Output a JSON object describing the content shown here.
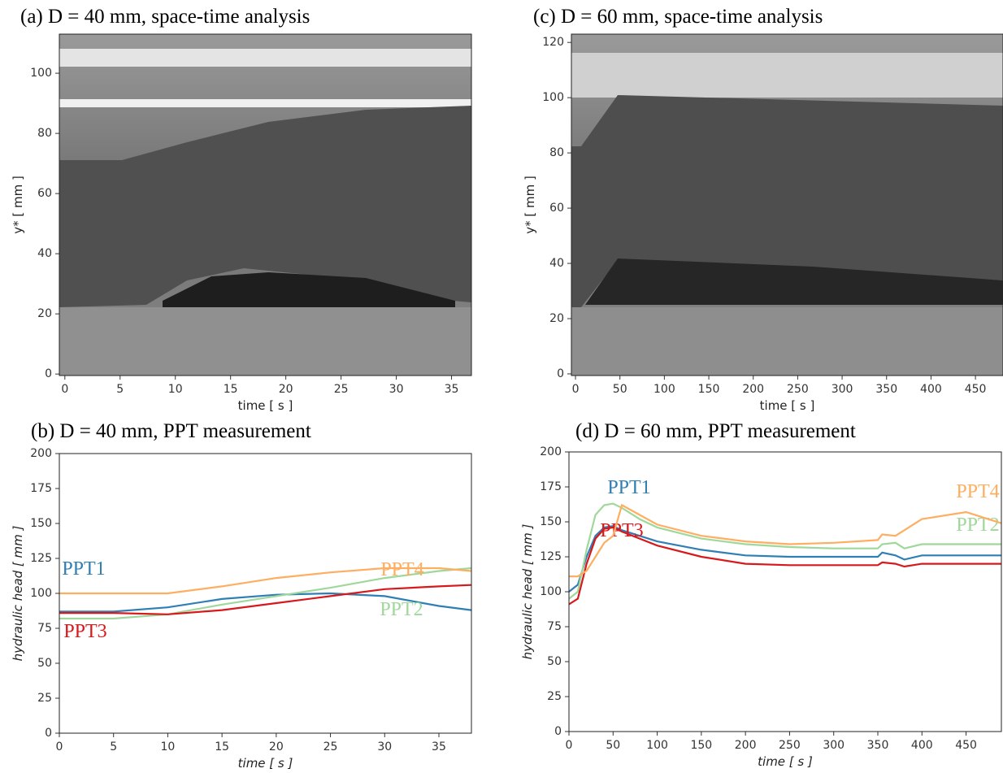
{
  "chart_data": [
    {
      "type": "image",
      "title": "(a) D = 40 mm, space-time analysis",
      "x_label": "time [ s ]",
      "y_label": "y* [ mm ]",
      "xlim": [
        -0.5,
        36.8
      ],
      "ylim": [
        -0.5,
        113
      ],
      "xticks": [
        0,
        5,
        10,
        15,
        20,
        25,
        30,
        35
      ],
      "yticks": [
        0,
        20,
        40,
        60,
        80,
        100
      ]
    },
    {
      "type": "line",
      "title": "(b) D = 40 mm, PPT measurement",
      "x_label": "time [ s ]",
      "y_label": "hydraulic head [ mm ]",
      "xlim": [
        0,
        38
      ],
      "ylim": [
        0,
        200
      ],
      "xticks": [
        0,
        5,
        10,
        15,
        20,
        25,
        30,
        35
      ],
      "yticks": [
        0,
        25,
        50,
        75,
        100,
        125,
        150,
        175,
        200
      ],
      "x": [
        0,
        5,
        10,
        15,
        20,
        25,
        30,
        35,
        38
      ],
      "series": [
        {
          "name": "PPT1",
          "color": "#2f7fb5",
          "values": [
            87,
            87,
            90,
            96,
            99,
            100,
            98,
            91,
            88
          ]
        },
        {
          "name": "PPT2",
          "color": "#9fd89a",
          "values": [
            82,
            82,
            85,
            92,
            98,
            104,
            111,
            116,
            118
          ]
        },
        {
          "name": "PPT3",
          "color": "#d7191c",
          "values": [
            86,
            86,
            85,
            88,
            93,
            98,
            103,
            105,
            106
          ]
        },
        {
          "name": "PPT4",
          "color": "#fdae61",
          "values": [
            100,
            100,
            100,
            105,
            111,
            115,
            118,
            118,
            116
          ]
        }
      ]
    },
    {
      "type": "image",
      "title": "(c) D = 60 mm, space-time analysis",
      "x_label": "time [ s ]",
      "y_label": "y* [ mm ]",
      "xlim": [
        -4.6,
        481
      ],
      "ylim": [
        -0.6,
        123
      ],
      "xticks": [
        0,
        50,
        100,
        150,
        200,
        250,
        300,
        350,
        400,
        450
      ],
      "yticks": [
        0,
        20,
        40,
        60,
        80,
        100,
        120
      ]
    },
    {
      "type": "line",
      "title": "(d) D = 60 mm,  PPT measurement",
      "x_label": "time [ s ]",
      "y_label": "hydraulic head [ mm ]",
      "xlim": [
        0,
        490
      ],
      "ylim": [
        0,
        200
      ],
      "xticks": [
        0,
        50,
        100,
        150,
        200,
        250,
        300,
        350,
        400,
        450
      ],
      "yticks": [
        0,
        25,
        50,
        75,
        100,
        125,
        150,
        175,
        200
      ],
      "x": [
        0,
        10,
        20,
        30,
        40,
        50,
        60,
        80,
        100,
        150,
        200,
        250,
        300,
        350,
        355,
        370,
        380,
        400,
        450,
        490
      ],
      "series": [
        {
          "name": "PPT1",
          "color": "#2f7fb5",
          "values": [
            100,
            105,
            125,
            140,
            146,
            147,
            144,
            140,
            136,
            130,
            126,
            125,
            125,
            125,
            128,
            126,
            123,
            126,
            126,
            126
          ]
        },
        {
          "name": "PPT2",
          "color": "#9fd89a",
          "values": [
            95,
            100,
            130,
            155,
            162,
            163,
            160,
            152,
            146,
            138,
            134,
            132,
            131,
            131,
            134,
            135,
            131,
            134,
            134,
            134
          ]
        },
        {
          "name": "PPT3",
          "color": "#d7191c",
          "values": [
            91,
            95,
            120,
            138,
            145,
            146,
            143,
            138,
            133,
            125,
            120,
            119,
            119,
            119,
            121,
            120,
            118,
            120,
            120,
            120
          ]
        },
        {
          "name": "PPT4",
          "color": "#fdae61",
          "values": [
            111,
            111,
            115,
            125,
            135,
            140,
            162,
            155,
            148,
            140,
            136,
            134,
            135,
            137,
            141,
            140,
            144,
            152,
            157,
            149
          ]
        }
      ]
    }
  ]
}
